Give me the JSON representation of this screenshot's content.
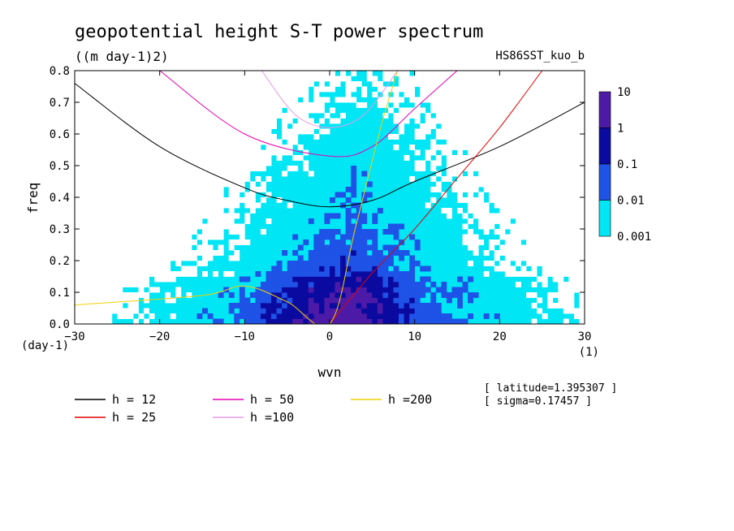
{
  "chart_data": {
    "type": "heatmap",
    "title": "geopotential height S-T power spectrum",
    "subtitle": "((m day-1)2)",
    "run_label": "HS86SST_kuo_b",
    "xlabel": "wvn",
    "x_unit": "(1)",
    "ylabel": "freq",
    "y_unit": "(day-1)",
    "xlim": [
      -30,
      30
    ],
    "ylim": [
      0,
      0.8
    ],
    "x_ticks": [
      "−30",
      "−20",
      "−10",
      "0",
      "10",
      "20",
      "30"
    ],
    "x_tick_values": [
      -30,
      -20,
      -10,
      0,
      10,
      20,
      30
    ],
    "y_ticks": [
      "0.0",
      "0.1",
      "0.2",
      "0.3",
      "0.4",
      "0.5",
      "0.6",
      "0.7",
      "0.8"
    ],
    "y_tick_values": [
      0,
      0.1,
      0.2,
      0.3,
      0.4,
      0.5,
      0.6,
      0.7,
      0.8
    ],
    "colorbar": {
      "levels": [
        "10",
        "1",
        "0.1",
        "0.01",
        "0.001"
      ],
      "colors": [
        "#4d1aa8",
        "#0a0aa0",
        "#1f52e6",
        "#2e8cf0",
        "#00e6f5"
      ],
      "scale": "log"
    },
    "heatmap_note": "log-scale power, strongest near wvn 0 at low freq",
    "series": [
      {
        "name": "h = 12",
        "color": "#000000",
        "x": [
          -30,
          -20,
          -10,
          -5,
          0,
          5,
          10,
          20,
          30
        ],
        "y": [
          0.76,
          0.56,
          0.43,
          0.39,
          0.37,
          0.39,
          0.45,
          0.56,
          0.7
        ]
      },
      {
        "name": "h = 25",
        "color": "#e60000",
        "x": [
          0,
          5,
          10,
          15,
          20,
          25
        ],
        "y": [
          0.0,
          0.16,
          0.3,
          0.46,
          0.62,
          0.8
        ]
      },
      {
        "name": "h = 50",
        "color": "#e600b4",
        "x": [
          -20,
          -10,
          0,
          5,
          10,
          15
        ],
        "y": [
          0.8,
          0.6,
          0.53,
          0.56,
          0.68,
          0.8
        ]
      },
      {
        "name": "h =100",
        "color": "#e69be6",
        "x": [
          -8,
          -4,
          0,
          4,
          8
        ],
        "y": [
          0.8,
          0.66,
          0.62,
          0.66,
          0.8
        ]
      },
      {
        "name": "h =200",
        "color": "#f0d200",
        "x": [
          -30,
          -15,
          -10,
          -5,
          0,
          3,
          6,
          8
        ],
        "y": [
          0.06,
          0.09,
          0.12,
          0.07,
          0.0,
          0.3,
          0.62,
          0.8
        ]
      }
    ]
  },
  "legend": [
    {
      "label": "h = 12",
      "color": "#000000"
    },
    {
      "label": "h = 25",
      "color": "#e60000"
    },
    {
      "label": "h = 50",
      "color": "#e600b4"
    },
    {
      "label": "h =100",
      "color": "#e69be6"
    },
    {
      "label": "h =200",
      "color": "#f0d200"
    }
  ],
  "info": {
    "latitude": "[ latitude=1.395307 ]",
    "sigma": "[ sigma=0.17457 ]"
  }
}
